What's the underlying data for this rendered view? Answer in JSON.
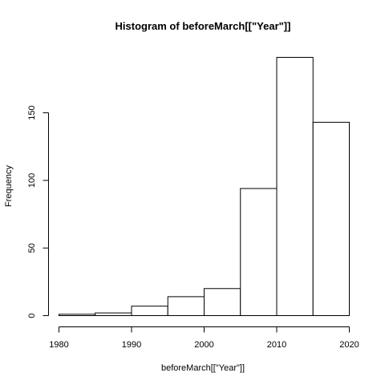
{
  "chart_data": {
    "type": "bar",
    "title": "Histogram of beforeMarch[[\"Year\"]]",
    "xlabel": "beforeMarch[[\"Year\"]]",
    "ylabel": "Frequency",
    "xlim": [
      1980,
      2020
    ],
    "ylim": [
      0,
      191
    ],
    "x_ticks": [
      1980,
      1990,
      2000,
      2010,
      2020
    ],
    "y_ticks": [
      0,
      50,
      100,
      150
    ],
    "bins": [
      {
        "start": 1980,
        "end": 1985,
        "count": 1
      },
      {
        "start": 1985,
        "end": 1990,
        "count": 2
      },
      {
        "start": 1990,
        "end": 1995,
        "count": 7
      },
      {
        "start": 1995,
        "end": 2000,
        "count": 14
      },
      {
        "start": 2000,
        "end": 2005,
        "count": 20
      },
      {
        "start": 2005,
        "end": 2010,
        "count": 94
      },
      {
        "start": 2010,
        "end": 2015,
        "count": 191
      },
      {
        "start": 2015,
        "end": 2020,
        "count": 143
      }
    ],
    "fill_color": "#ffffff",
    "stroke_color": "#000000",
    "grid": false,
    "legend": "none"
  }
}
